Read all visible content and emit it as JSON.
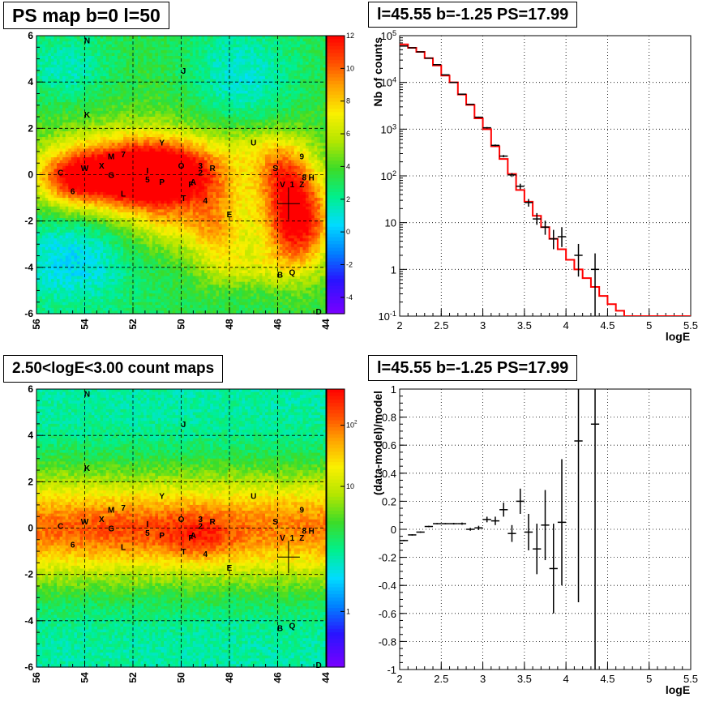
{
  "panels": {
    "top_left_title": "PS map b=0 l=50",
    "top_right_title": "l=45.55 b=-1.25 PS=17.99",
    "bottom_left_title": "2.50<logE<3.00 count maps",
    "bottom_right_title": "l=45.55 b=-1.25 PS=17.99"
  },
  "colors": {
    "fit_line": "#ff0000",
    "data": "#000000",
    "grid": "#000000"
  },
  "chart_data": [
    {
      "type": "heatmap",
      "title": "PS map b=0 l=50",
      "x_ticks": [
        "56",
        "54",
        "52",
        "50",
        "48",
        "46",
        "44"
      ],
      "y_ticks": [
        "-6",
        "-4",
        "-2",
        "0",
        "2",
        "4",
        "6"
      ],
      "xlim": [
        56,
        44
      ],
      "ylim": [
        -6,
        6
      ],
      "grid": true,
      "colorbar": {
        "range": [
          -5,
          12
        ],
        "ticks": [
          "12",
          "10",
          "8",
          "6",
          "4",
          "2",
          "0",
          "-2",
          "-4"
        ]
      },
      "sources": [
        {
          "label": "N",
          "l": 53.9,
          "b": 5.8
        },
        {
          "label": "J",
          "l": 49.9,
          "b": 4.5
        },
        {
          "label": "K",
          "l": 53.9,
          "b": 2.6
        },
        {
          "label": "Y",
          "l": 50.8,
          "b": 1.4
        },
        {
          "label": "U",
          "l": 47.0,
          "b": 1.4
        },
        {
          "label": "9",
          "l": 45.0,
          "b": 0.8
        },
        {
          "label": "M",
          "l": 52.9,
          "b": 0.8
        },
        {
          "label": "7",
          "l": 52.4,
          "b": 0.9
        },
        {
          "label": "X",
          "l": 53.3,
          "b": 0.4
        },
        {
          "label": "W",
          "l": 54.0,
          "b": 0.3
        },
        {
          "label": "C",
          "l": 55.0,
          "b": 0.1
        },
        {
          "label": "G",
          "l": 52.9,
          "b": 0.0
        },
        {
          "label": "I",
          "l": 51.4,
          "b": 0.2
        },
        {
          "label": "O",
          "l": 50.0,
          "b": 0.4
        },
        {
          "label": "3",
          "l": 49.2,
          "b": 0.4
        },
        {
          "label": "R",
          "l": 48.7,
          "b": 0.3
        },
        {
          "label": "S",
          "l": 46.1,
          "b": 0.3
        },
        {
          "label": "2",
          "l": 49.2,
          "b": 0.1
        },
        {
          "label": "8",
          "l": 44.9,
          "b": -0.1
        },
        {
          "label": "H",
          "l": 44.6,
          "b": -0.1
        },
        {
          "label": "5",
          "l": 51.4,
          "b": -0.2
        },
        {
          "label": "P",
          "l": 50.8,
          "b": -0.3
        },
        {
          "label": "A",
          "l": 49.5,
          "b": -0.3
        },
        {
          "label": "F",
          "l": 49.6,
          "b": -0.4
        },
        {
          "label": "V",
          "l": 45.8,
          "b": -0.4
        },
        {
          "label": "1",
          "l": 45.4,
          "b": -0.4
        },
        {
          "label": "Z",
          "l": 45.0,
          "b": -0.4
        },
        {
          "label": "6",
          "l": 54.5,
          "b": -0.7
        },
        {
          "label": "L",
          "l": 52.4,
          "b": -0.8
        },
        {
          "label": "T",
          "l": 49.9,
          "b": -1.0
        },
        {
          "label": "4",
          "l": 49.0,
          "b": -1.1
        },
        {
          "label": "E",
          "l": 48.0,
          "b": -1.7
        },
        {
          "label": "B",
          "l": 45.9,
          "b": -4.3
        },
        {
          "label": "Q",
          "l": 45.4,
          "b": -4.2
        },
        {
          "label": "D",
          "l": 44.3,
          "b": -5.9
        }
      ],
      "marker": {
        "l": 45.55,
        "b": -1.25
      }
    },
    {
      "type": "line",
      "title": "l=45.55 b=-1.25 PS=17.99",
      "xlabel": "logE",
      "ylabel": "Nb of counts",
      "x_ticks": [
        "2",
        "2.5",
        "3",
        "3.5",
        "4",
        "4.5",
        "5",
        "5.5"
      ],
      "y_ticks": [
        "10^{-1}",
        "1",
        "10",
        "10^{2}",
        "10^{3}",
        "10^{4}",
        "10^{5}"
      ],
      "xlim": [
        2,
        5.5
      ],
      "ylim": [
        0.1,
        100000
      ],
      "log_y": true,
      "grid": true,
      "series": [
        {
          "style": "histogram",
          "bin_edges": [
            2.0,
            2.1,
            2.2,
            2.3,
            2.4,
            2.5,
            2.6,
            2.7,
            2.8,
            2.9,
            3.0,
            3.1,
            3.2,
            3.3,
            3.4,
            3.5,
            3.6,
            3.7,
            3.8,
            3.9,
            4.0,
            4.1,
            4.2,
            4.3,
            4.4,
            4.5,
            4.6,
            4.7,
            4.8,
            4.9,
            5.0,
            5.1,
            5.2,
            5.3,
            5.4,
            5.5
          ],
          "values": [
            65000,
            55000,
            45000,
            33000,
            23000,
            14000,
            10000,
            5500,
            3300,
            1700,
            1000,
            430,
            230,
            110,
            50,
            28,
            14,
            8,
            4.5,
            2.7,
            1.6,
            1.0,
            0.65,
            0.42,
            0.27,
            0.18,
            0.13,
            0.1,
            0.1,
            0.1,
            0.1,
            0.1,
            0.1,
            0.1,
            0.1
          ]
        },
        {
          "style": "errorbar",
          "points": [
            {
              "x": 2.05,
              "y": 60000,
              "ylo": 60000,
              "yhi": 60000
            },
            {
              "x": 2.15,
              "y": 55000,
              "ylo": 55000,
              "yhi": 55000
            },
            {
              "x": 2.25,
              "y": 45000,
              "ylo": 45000,
              "yhi": 45000
            },
            {
              "x": 2.35,
              "y": 33000,
              "ylo": 33000,
              "yhi": 33000
            },
            {
              "x": 2.45,
              "y": 24000,
              "ylo": 24000,
              "yhi": 24000
            },
            {
              "x": 2.55,
              "y": 14500,
              "ylo": 14500,
              "yhi": 14500
            },
            {
              "x": 2.65,
              "y": 10000,
              "ylo": 10000,
              "yhi": 10000
            },
            {
              "x": 2.75,
              "y": 5600,
              "ylo": 5500,
              "yhi": 5700
            },
            {
              "x": 2.85,
              "y": 3400,
              "ylo": 3350,
              "yhi": 3450
            },
            {
              "x": 2.95,
              "y": 1800,
              "ylo": 1750,
              "yhi": 1850
            },
            {
              "x": 3.05,
              "y": 1070,
              "ylo": 1030,
              "yhi": 1110
            },
            {
              "x": 3.15,
              "y": 450,
              "ylo": 430,
              "yhi": 470
            },
            {
              "x": 3.25,
              "y": 265,
              "ylo": 250,
              "yhi": 280
            },
            {
              "x": 3.35,
              "y": 105,
              "ylo": 95,
              "yhi": 115
            },
            {
              "x": 3.45,
              "y": 60,
              "ylo": 52,
              "yhi": 68
            },
            {
              "x": 3.55,
              "y": 27,
              "ylo": 22,
              "yhi": 32
            },
            {
              "x": 3.65,
              "y": 12,
              "ylo": 9,
              "yhi": 16
            },
            {
              "x": 3.75,
              "y": 8,
              "ylo": 5.5,
              "yhi": 11
            },
            {
              "x": 3.85,
              "y": 4.5,
              "ylo": 2.7,
              "yhi": 7
            },
            {
              "x": 3.95,
              "y": 5,
              "ylo": 3,
              "yhi": 8
            },
            {
              "x": 4.15,
              "y": 2,
              "ylo": 0.7,
              "yhi": 3.5
            },
            {
              "x": 4.35,
              "y": 1,
              "ylo": 0.1,
              "yhi": 2.2
            }
          ]
        }
      ]
    },
    {
      "type": "heatmap",
      "title": "2.50<logE<3.00 count maps",
      "x_ticks": [
        "56",
        "54",
        "52",
        "50",
        "48",
        "46",
        "44"
      ],
      "y_ticks": [
        "-6",
        "-4",
        "-2",
        "0",
        "2",
        "4",
        "6"
      ],
      "xlim": [
        56,
        44
      ],
      "ylim": [
        -6,
        6
      ],
      "grid": true,
      "colorbar": {
        "log": true,
        "ticks": [
          "10^{2}",
          "10",
          "1"
        ]
      },
      "marker": {
        "l": 45.55,
        "b": -1.25
      }
    },
    {
      "type": "scatter",
      "title": "l=45.55 b=-1.25 PS=17.99",
      "xlabel": "logE",
      "ylabel": "(data-model)/model",
      "x_ticks": [
        "2",
        "2.5",
        "3",
        "3.5",
        "4",
        "4.5",
        "5",
        "5.5"
      ],
      "y_ticks": [
        "-1",
        "-0.8",
        "-0.6",
        "-0.4",
        "-0.2",
        "0",
        "0.2",
        "0.4",
        "0.6",
        "0.8",
        "1"
      ],
      "xlim": [
        2,
        5.5
      ],
      "ylim": [
        -1,
        1
      ],
      "grid": true,
      "points": [
        {
          "x": 2.05,
          "y": -0.08,
          "err": 0.005
        },
        {
          "x": 2.15,
          "y": -0.04,
          "err": 0.005
        },
        {
          "x": 2.25,
          "y": -0.02,
          "err": 0.005
        },
        {
          "x": 2.35,
          "y": 0.02,
          "err": 0.005
        },
        {
          "x": 2.45,
          "y": 0.04,
          "err": 0.005
        },
        {
          "x": 2.55,
          "y": 0.04,
          "err": 0.005
        },
        {
          "x": 2.65,
          "y": 0.04,
          "err": 0.006
        },
        {
          "x": 2.75,
          "y": 0.04,
          "err": 0.008
        },
        {
          "x": 2.85,
          "y": 0.0,
          "err": 0.01
        },
        {
          "x": 2.95,
          "y": 0.01,
          "err": 0.015
        },
        {
          "x": 3.05,
          "y": 0.07,
          "err": 0.02
        },
        {
          "x": 3.15,
          "y": 0.06,
          "err": 0.03
        },
        {
          "x": 3.25,
          "y": 0.14,
          "err": 0.05
        },
        {
          "x": 3.35,
          "y": -0.03,
          "err": 0.06
        },
        {
          "x": 3.45,
          "y": 0.2,
          "err": 0.09
        },
        {
          "x": 3.55,
          "y": -0.02,
          "err": 0.13
        },
        {
          "x": 3.65,
          "y": -0.14,
          "err": 0.18
        },
        {
          "x": 3.75,
          "y": 0.03,
          "err": 0.25
        },
        {
          "x": 3.85,
          "y": -0.28,
          "err": 0.32
        },
        {
          "x": 3.95,
          "y": 0.05,
          "err": 0.45
        },
        {
          "x": 4.15,
          "y": 0.63,
          "err": 1.15
        },
        {
          "x": 4.35,
          "y": 0.75,
          "err": 1.75
        }
      ]
    }
  ]
}
